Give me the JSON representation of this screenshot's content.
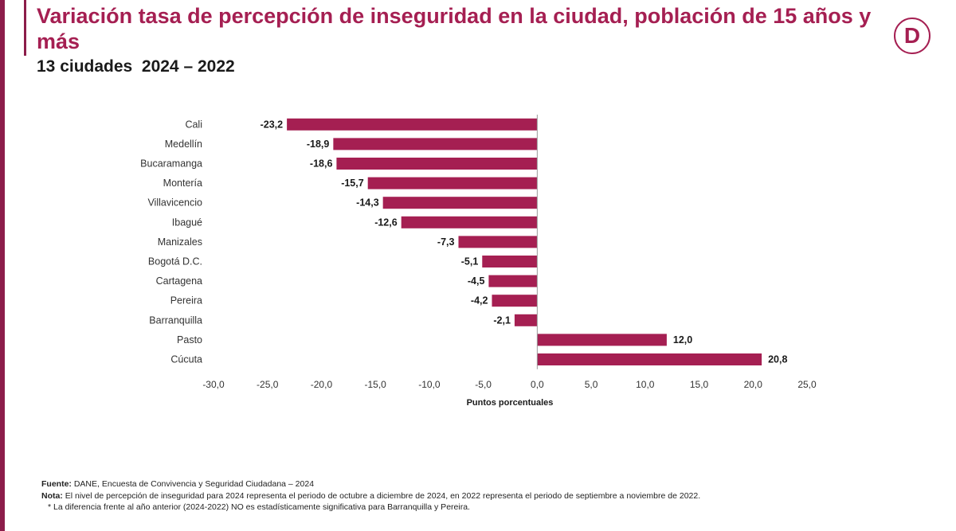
{
  "title": "Variación tasa de percepción de inseguridad en la ciudad, población de 15 años y más",
  "subtitle": "13 ciudades  2024 – 2022",
  "logo": {
    "icon": "dane-logo-icon",
    "letter": "D",
    "color": "#a51f52"
  },
  "footer": {
    "source_label": "Fuente:",
    "source_text": " DANE, Encuesta de Convivencia y Seguridad Ciudadana – 2024",
    "note_label": "Nota:",
    "note_text": " El nivel de percepción de inseguridad para 2024 representa el periodo de octubre a diciembre de 2024, en 2022 representa el periodo de septiembre a noviembre de 2022.",
    "asterisk_text": "* La diferencia frente al año anterior (2024-2022) NO es estadísticamente significativa para Barranquilla y Pereira."
  },
  "chart_data": {
    "type": "bar",
    "orientation": "horizontal",
    "categories": [
      "Cali",
      "Medellín",
      "Bucaramanga",
      "Montería",
      "Villavicencio",
      "Ibagué",
      "Manizales",
      "Bogotá D.C.",
      "Cartagena",
      "Pereira",
      "Barranquilla",
      "Pasto",
      "Cúcuta"
    ],
    "values": [
      -23.2,
      -18.9,
      -18.6,
      -15.7,
      -14.3,
      -12.6,
      -7.3,
      -5.1,
      -4.5,
      -4.2,
      -2.1,
      12.0,
      20.8
    ],
    "value_labels": [
      "-23,2",
      "-18,9",
      "-18,6",
      "-15,7",
      "-14,3",
      "-12,6",
      "-7,3",
      "-5,1",
      "-4,5",
      "-4,2",
      "-2,1",
      "12,0",
      "20,8"
    ],
    "xlabel": "Puntos porcentuales",
    "xlim": [
      -30,
      25
    ],
    "xticks": [
      -30,
      -25,
      -20,
      -15,
      -10,
      -5,
      0,
      5,
      10,
      15,
      20,
      25
    ],
    "xtick_labels": [
      "-30,0",
      "-25,0",
      "-20,0",
      "-15,0",
      "-10,0",
      "-5,0",
      "0,0",
      "5,0",
      "10,0",
      "15,0",
      "20,0",
      "25,0"
    ],
    "grid": false,
    "bar_color": "#a51f52"
  }
}
